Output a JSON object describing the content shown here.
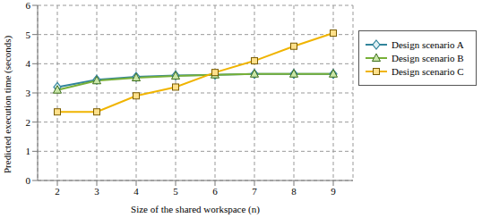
{
  "chart_data": {
    "type": "line",
    "x_label": "Size of the shared workspace (n)",
    "y_label": "Predicted execution time (seconds)",
    "categories": [
      "2",
      "3",
      "4",
      "5",
      "6",
      "7",
      "8",
      "9"
    ],
    "series": [
      {
        "name": "Design scenario A",
        "color": "#31849b",
        "marker": "diamond",
        "values": [
          3.2,
          3.45,
          3.55,
          3.6,
          3.62,
          3.65,
          3.65,
          3.65
        ]
      },
      {
        "name": "Design scenario B",
        "color": "#77b037",
        "marker": "triangle",
        "values": [
          3.1,
          3.42,
          3.52,
          3.58,
          3.62,
          3.65,
          3.65,
          3.65
        ]
      },
      {
        "name": "Design scenario C",
        "color": "#f0b400",
        "marker": "square",
        "values": [
          2.35,
          2.35,
          2.9,
          3.2,
          3.7,
          4.1,
          4.6,
          5.05
        ]
      }
    ],
    "ylim": [
      0,
      6
    ],
    "yticks": [
      0,
      1,
      2,
      3,
      4,
      5,
      6
    ],
    "grid": true,
    "legend": "right"
  }
}
